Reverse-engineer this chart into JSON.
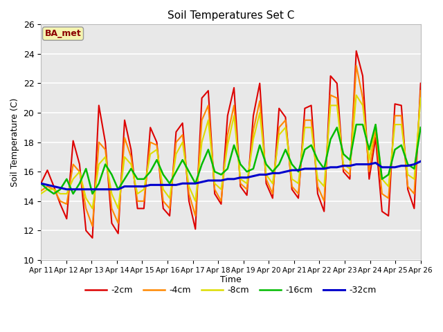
{
  "title": "Soil Temperatures Set C",
  "xlabel": "Time",
  "ylabel": "Soil Temperature (C)",
  "ylim": [
    10,
    26
  ],
  "annotation": "BA_met",
  "series_labels": [
    "-2cm",
    "-4cm",
    "-8cm",
    "-16cm",
    "-32cm"
  ],
  "series_colors": [
    "#dd0000",
    "#ff8800",
    "#dddd00",
    "#00bb00",
    "#0000cc"
  ],
  "background_color": "#e8e8e8",
  "grid_color": "#ffffff",
  "x_tick_labels": [
    "Apr 11",
    "Apr 12",
    "Apr 13",
    "Apr 14",
    "Apr 15",
    "Apr 16",
    "Apr 17",
    "Apr 18",
    "Apr 19",
    "Apr 20",
    "Apr 21",
    "Apr 22",
    "Apr 23",
    "Apr 24",
    "Apr 25",
    "Apr 26"
  ],
  "data_2cm": [
    15.2,
    16.1,
    15.0,
    13.8,
    12.8,
    18.1,
    16.5,
    12.0,
    11.5,
    20.5,
    18.0,
    12.5,
    11.8,
    19.5,
    17.5,
    13.5,
    13.5,
    19.0,
    18.0,
    13.5,
    13.0,
    18.7,
    19.3,
    14.0,
    12.1,
    21.0,
    21.5,
    14.5,
    13.8,
    19.8,
    21.7,
    15.0,
    14.4,
    19.8,
    22.0,
    15.2,
    14.2,
    20.3,
    19.7,
    14.8,
    14.2,
    20.3,
    20.5,
    14.5,
    13.3,
    22.5,
    22.0,
    16.0,
    15.5,
    24.2,
    22.5,
    15.5,
    18.3,
    13.3,
    13.0,
    20.6,
    20.5,
    14.8,
    13.5,
    22.0
  ],
  "data_4cm": [
    14.7,
    15.0,
    14.8,
    14.0,
    13.8,
    16.5,
    16.0,
    13.5,
    12.3,
    18.0,
    17.5,
    13.5,
    12.5,
    18.3,
    17.0,
    14.0,
    14.0,
    18.0,
    17.8,
    14.0,
    13.5,
    18.0,
    18.5,
    14.5,
    13.0,
    19.5,
    20.5,
    14.8,
    14.0,
    18.5,
    20.5,
    15.2,
    14.8,
    18.8,
    20.8,
    15.5,
    14.5,
    19.0,
    19.5,
    15.0,
    14.5,
    19.5,
    19.5,
    15.0,
    14.0,
    21.2,
    21.0,
    16.2,
    15.8,
    23.2,
    21.0,
    16.0,
    18.8,
    14.5,
    14.2,
    19.8,
    19.8,
    15.0,
    14.5,
    21.5
  ],
  "data_8cm": [
    14.5,
    14.8,
    14.8,
    14.5,
    14.5,
    15.5,
    16.0,
    14.2,
    13.5,
    16.5,
    17.0,
    14.5,
    13.5,
    17.0,
    16.5,
    14.5,
    14.8,
    17.2,
    17.5,
    14.8,
    14.2,
    17.2,
    18.0,
    15.0,
    14.0,
    18.0,
    19.5,
    15.2,
    14.8,
    17.8,
    19.8,
    15.5,
    15.2,
    18.2,
    20.0,
    15.8,
    15.2,
    18.5,
    19.0,
    15.5,
    15.2,
    19.0,
    19.0,
    15.5,
    15.0,
    20.5,
    20.5,
    16.5,
    16.2,
    21.2,
    20.5,
    16.8,
    19.2,
    15.5,
    15.0,
    19.2,
    19.2,
    15.8,
    15.5,
    21.0
  ],
  "data_16cm": [
    15.2,
    14.8,
    14.5,
    14.8,
    15.5,
    14.5,
    15.2,
    16.2,
    14.5,
    15.2,
    16.5,
    15.8,
    14.8,
    15.5,
    16.2,
    15.5,
    15.5,
    16.0,
    16.8,
    15.8,
    15.2,
    16.0,
    16.8,
    16.0,
    15.2,
    16.5,
    17.5,
    16.0,
    15.8,
    16.2,
    17.8,
    16.5,
    16.0,
    16.2,
    17.8,
    16.5,
    16.0,
    16.5,
    17.5,
    16.5,
    16.0,
    17.5,
    17.8,
    16.8,
    16.2,
    18.2,
    19.0,
    17.2,
    16.8,
    19.2,
    19.2,
    17.5,
    19.2,
    15.5,
    15.8,
    17.5,
    17.8,
    16.5,
    16.2,
    19.0
  ],
  "data_32cm": [
    15.2,
    15.1,
    15.0,
    14.9,
    14.8,
    14.8,
    14.8,
    14.8,
    14.8,
    14.8,
    14.8,
    14.8,
    14.8,
    15.0,
    15.0,
    15.0,
    15.0,
    15.1,
    15.1,
    15.1,
    15.1,
    15.1,
    15.2,
    15.2,
    15.2,
    15.3,
    15.4,
    15.4,
    15.4,
    15.5,
    15.5,
    15.6,
    15.6,
    15.7,
    15.8,
    15.8,
    15.9,
    15.9,
    16.0,
    16.1,
    16.1,
    16.2,
    16.2,
    16.2,
    16.2,
    16.3,
    16.3,
    16.4,
    16.4,
    16.5,
    16.5,
    16.5,
    16.6,
    16.3,
    16.3,
    16.3,
    16.4,
    16.4,
    16.5,
    16.7
  ]
}
